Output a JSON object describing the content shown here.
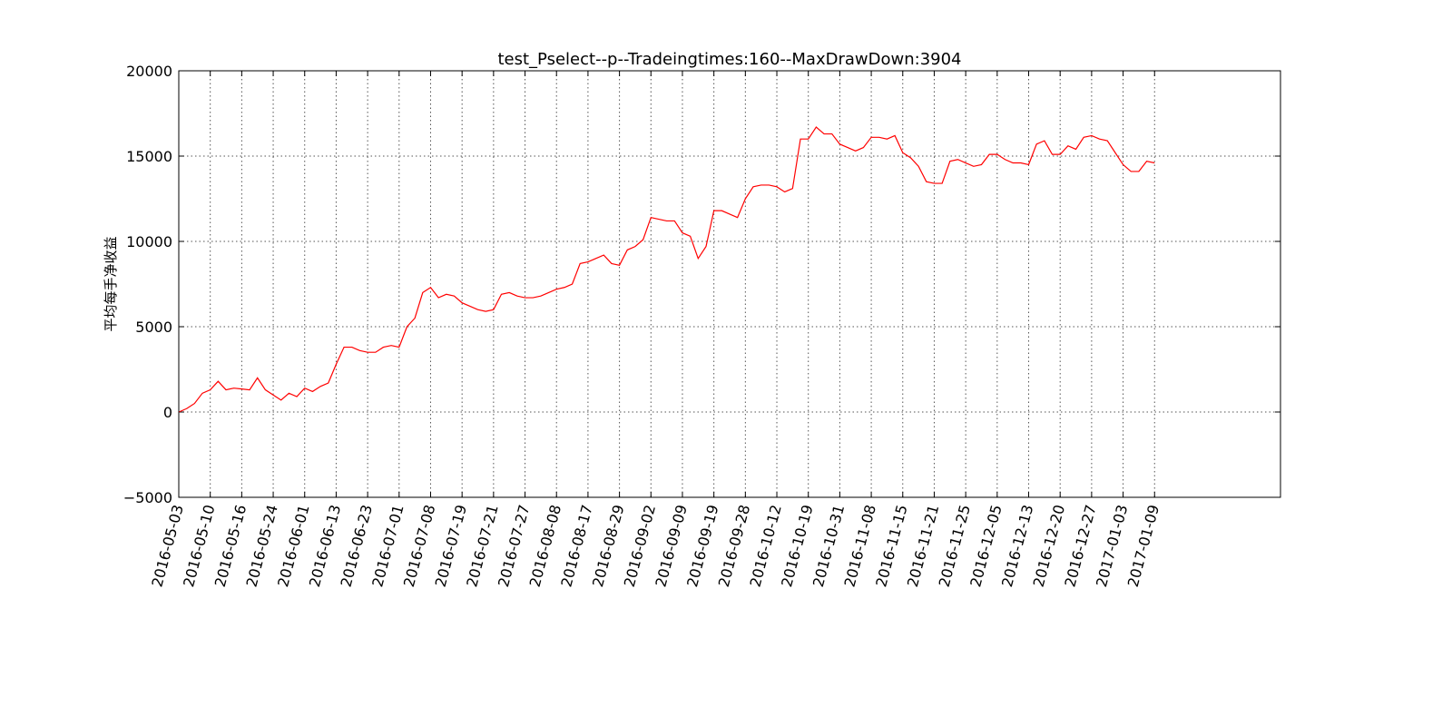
{
  "chart_data": {
    "type": "line",
    "title": "test_Pselect--p--Tradeingtimes:160--MaxDrawDown:3904",
    "y_label": "平均每手净收益",
    "x": [
      0,
      5,
      10,
      15,
      20,
      25,
      30,
      35,
      40,
      45,
      50,
      55,
      60,
      65,
      70,
      75,
      80,
      85,
      90,
      95,
      100,
      105,
      110,
      115,
      120,
      125,
      130,
      135,
      140,
      145,
      150,
      155,
      160,
      165,
      170,
      175,
      180,
      185,
      190,
      195,
      200,
      205,
      210,
      215,
      220,
      225,
      230,
      235,
      240,
      245,
      250,
      255,
      260,
      265,
      270,
      275,
      280,
      285,
      290,
      295,
      300,
      305,
      310,
      315,
      320,
      325,
      330,
      335,
      340,
      345,
      350,
      355,
      360,
      365,
      370,
      375,
      380,
      385,
      390,
      395,
      400,
      405,
      410,
      415,
      420,
      425,
      430,
      435,
      440,
      445,
      450,
      455,
      460,
      465,
      470,
      475,
      480,
      485,
      490,
      495,
      500,
      505,
      510,
      515,
      520,
      525,
      530,
      535,
      540,
      545,
      550,
      555,
      560,
      565,
      570,
      575,
      580,
      585,
      590,
      595,
      600,
      605,
      610,
      615,
      620
    ],
    "series": [
      {
        "color": "#ff0000",
        "values": [
          0,
          200,
          500,
          1100,
          1300,
          1800,
          1300,
          1400,
          1350,
          1300,
          2000,
          1300,
          1000,
          700,
          1100,
          900,
          1400,
          1200,
          1500,
          1700,
          2800,
          3800,
          3800,
          3600,
          3500,
          3500,
          3800,
          3900,
          3800,
          5000,
          5500,
          7000,
          7300,
          6700,
          6900,
          6800,
          6400,
          6200,
          6000,
          5900,
          6000,
          6900,
          7000,
          6800,
          6700,
          6700,
          6800,
          7000,
          7200,
          7300,
          7500,
          8700,
          8800,
          9000,
          9200,
          8700,
          8600,
          9500,
          9700,
          10100,
          11400,
          11300,
          11200,
          11200,
          10500,
          10300,
          9000,
          9700,
          11800,
          11800,
          11600,
          11400,
          12500,
          13200,
          13300,
          13300,
          13200,
          12900,
          13100,
          16000,
          16000,
          16700,
          16300,
          16300,
          15700,
          15500,
          15300,
          15500,
          16100,
          16100,
          16000,
          16200,
          15200,
          14900,
          14400,
          13500,
          13400,
          13400,
          14700,
          14800,
          14600,
          14400,
          14500,
          15100,
          15100,
          14800,
          14600,
          14600,
          14500,
          15700,
          15900,
          15100,
          15100,
          15600,
          15400,
          16100,
          16200,
          16000,
          15900,
          15200,
          14500,
          14100,
          14100,
          14700,
          14600
        ]
      }
    ],
    "xlim": [
      0,
      700
    ],
    "xticks": [
      {
        "value": 0,
        "label": "2016-05-03"
      },
      {
        "value": 20,
        "label": "2016-05-10"
      },
      {
        "value": 40,
        "label": "2016-05-16"
      },
      {
        "value": 60,
        "label": "2016-05-24"
      },
      {
        "value": 80,
        "label": "2016-06-01"
      },
      {
        "value": 100,
        "label": "2016-06-13"
      },
      {
        "value": 120,
        "label": "2016-06-23"
      },
      {
        "value": 140,
        "label": "2016-07-01"
      },
      {
        "value": 160,
        "label": "2016-07-08"
      },
      {
        "value": 180,
        "label": "2016-07-19"
      },
      {
        "value": 200,
        "label": "2016-07-21"
      },
      {
        "value": 220,
        "label": "2016-07-27"
      },
      {
        "value": 240,
        "label": "2016-08-08"
      },
      {
        "value": 260,
        "label": "2016-08-17"
      },
      {
        "value": 280,
        "label": "2016-08-29"
      },
      {
        "value": 300,
        "label": "2016-09-02"
      },
      {
        "value": 320,
        "label": "2016-09-09"
      },
      {
        "value": 340,
        "label": "2016-09-19"
      },
      {
        "value": 360,
        "label": "2016-09-28"
      },
      {
        "value": 380,
        "label": "2016-10-12"
      },
      {
        "value": 400,
        "label": "2016-10-19"
      },
      {
        "value": 420,
        "label": "2016-10-31"
      },
      {
        "value": 440,
        "label": "2016-11-08"
      },
      {
        "value": 460,
        "label": "2016-11-15"
      },
      {
        "value": 480,
        "label": "2016-11-21"
      },
      {
        "value": 500,
        "label": "2016-11-25"
      },
      {
        "value": 520,
        "label": "2016-12-05"
      },
      {
        "value": 540,
        "label": "2016-12-13"
      },
      {
        "value": 560,
        "label": "2016-12-20"
      },
      {
        "value": 580,
        "label": "2016-12-27"
      },
      {
        "value": 600,
        "label": "2017-01-03"
      },
      {
        "value": 620,
        "label": "2017-01-09"
      }
    ],
    "ylim": [
      -5000,
      20000
    ],
    "yticks": [
      {
        "value": -5000,
        "label": "−5000"
      },
      0,
      5000,
      10000,
      15000,
      20000
    ],
    "grid": true
  }
}
